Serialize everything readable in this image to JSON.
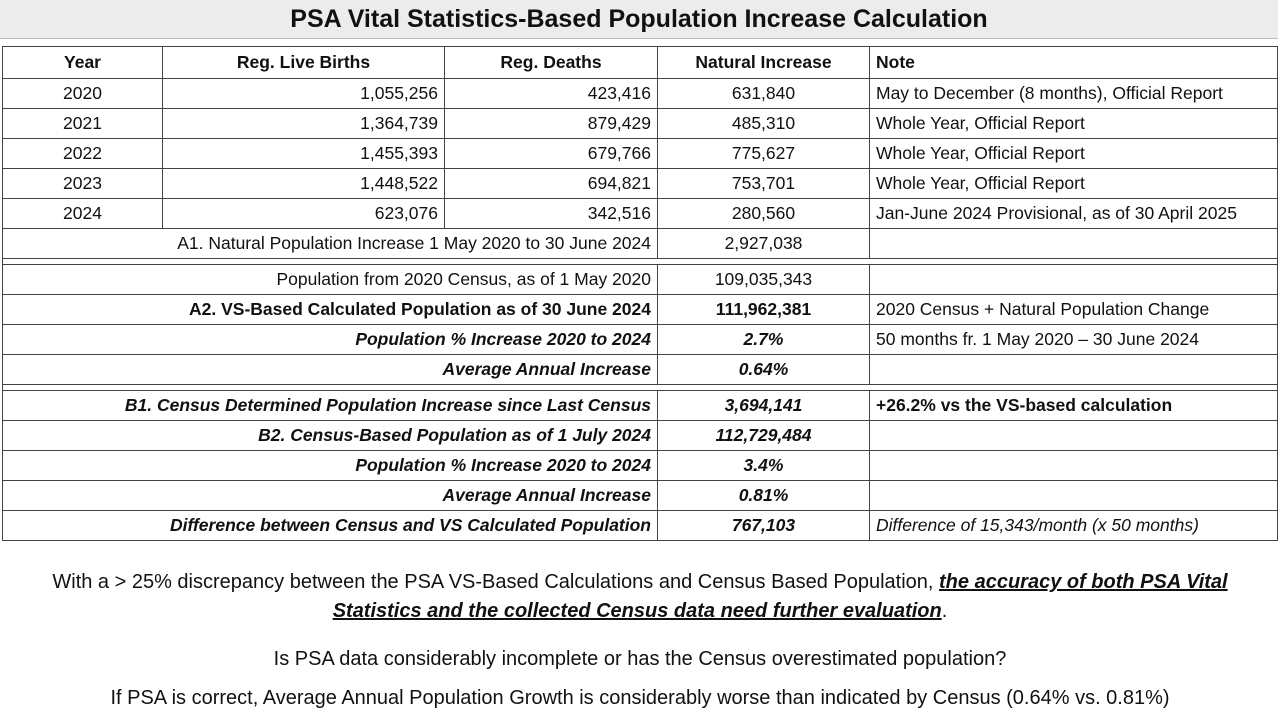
{
  "title": "PSA Vital Statistics-Based Population Increase Calculation",
  "table": {
    "headers": [
      "Year",
      "Reg. Live Births",
      "Reg. Deaths",
      "Natural Increase",
      "Note"
    ],
    "rows": [
      {
        "year": "2020",
        "births": "1,055,256",
        "deaths": "423,416",
        "natural": "631,840",
        "note": "May to December (8 months), Official Report"
      },
      {
        "year": "2021",
        "births": "1,364,739",
        "deaths": "879,429",
        "natural": "485,310",
        "note": "Whole Year, Official Report"
      },
      {
        "year": "2022",
        "births": "1,455,393",
        "deaths": "679,766",
        "natural": "775,627",
        "note": "Whole Year, Official Report"
      },
      {
        "year": "2023",
        "births": "1,448,522",
        "deaths": "694,821",
        "natural": "753,701",
        "note": "Whole Year, Official Report"
      },
      {
        "year": "2024",
        "births": "623,076",
        "deaths": "342,516",
        "natural": "280,560",
        "note": "Jan-June 2024 Provisional, as of 30 April 2025"
      }
    ],
    "a1": {
      "label": "A1. Natural Population Increase 1 May 2020 to 30 June 2024",
      "value": "2,927,038",
      "note": ""
    },
    "census2020": {
      "label": "Population from 2020 Census, as of 1 May 2020",
      "value": "109,035,343",
      "note": ""
    },
    "a2": {
      "label": "A2. VS-Based Calculated Population as of 30 June 2024",
      "value": "111,962,381",
      "note": "2020 Census + Natural Population Change"
    },
    "a_pct": {
      "label": "Population % Increase 2020 to 2024",
      "value": "2.7%",
      "note": "50 months fr. 1 May 2020 – 30 June 2024"
    },
    "a_avg": {
      "label": "Average Annual Increase",
      "value": "0.64%",
      "note": ""
    },
    "b1": {
      "label": "B1.  Census Determined Population Increase since Last Census",
      "value": "3,694,141",
      "note": "+26.2% vs the VS-based calculation"
    },
    "b2": {
      "label": "B2.  Census-Based Population as of 1 July 2024",
      "value": "112,729,484",
      "note": ""
    },
    "b_pct": {
      "label": "Population % Increase 2020 to 2024",
      "value": "3.4%",
      "note": ""
    },
    "b_avg": {
      "label": "Average Annual Increase",
      "value": "0.81%",
      "note": ""
    },
    "diff": {
      "label": "Difference between Census and VS Calculated Population",
      "value": "767,103",
      "note": "Difference of 15,343/month (x 50 months)"
    }
  },
  "captions": {
    "line1_pre": "With a > 25% discrepancy between the PSA VS-Based Calculations and Census Based Population, ",
    "line1_emph": "the accuracy of both PSA Vital Statistics and the collected Census data need further evaluation",
    "line1_post": ".",
    "line2": "Is PSA data considerably incomplete or has the Census overestimated population?",
    "line3": "If PSA is correct, Average Annual Population Growth is considerably worse than indicated by Census (0.64% vs. 0.81%)"
  }
}
